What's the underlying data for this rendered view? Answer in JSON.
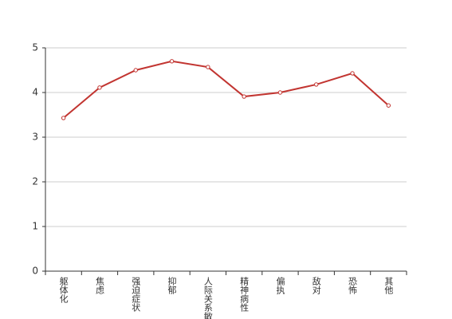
{
  "chart_data": {
    "type": "line",
    "categories": [
      "躯体化",
      "焦虑",
      "强迫症状",
      "抑郁",
      "人际关系敏感",
      "精神病性",
      "偏执",
      "敌对",
      "恐怖",
      "其他"
    ],
    "series": [
      {
        "color": "#c23531",
        "values": [
          3.43,
          4.11,
          4.5,
          4.7,
          4.57,
          3.91,
          4.0,
          4.18,
          4.43,
          3.71
        ]
      }
    ],
    "ylim": [
      0,
      5
    ],
    "yticks": [
      0,
      1,
      2,
      3,
      4,
      5
    ],
    "grid": true
  }
}
